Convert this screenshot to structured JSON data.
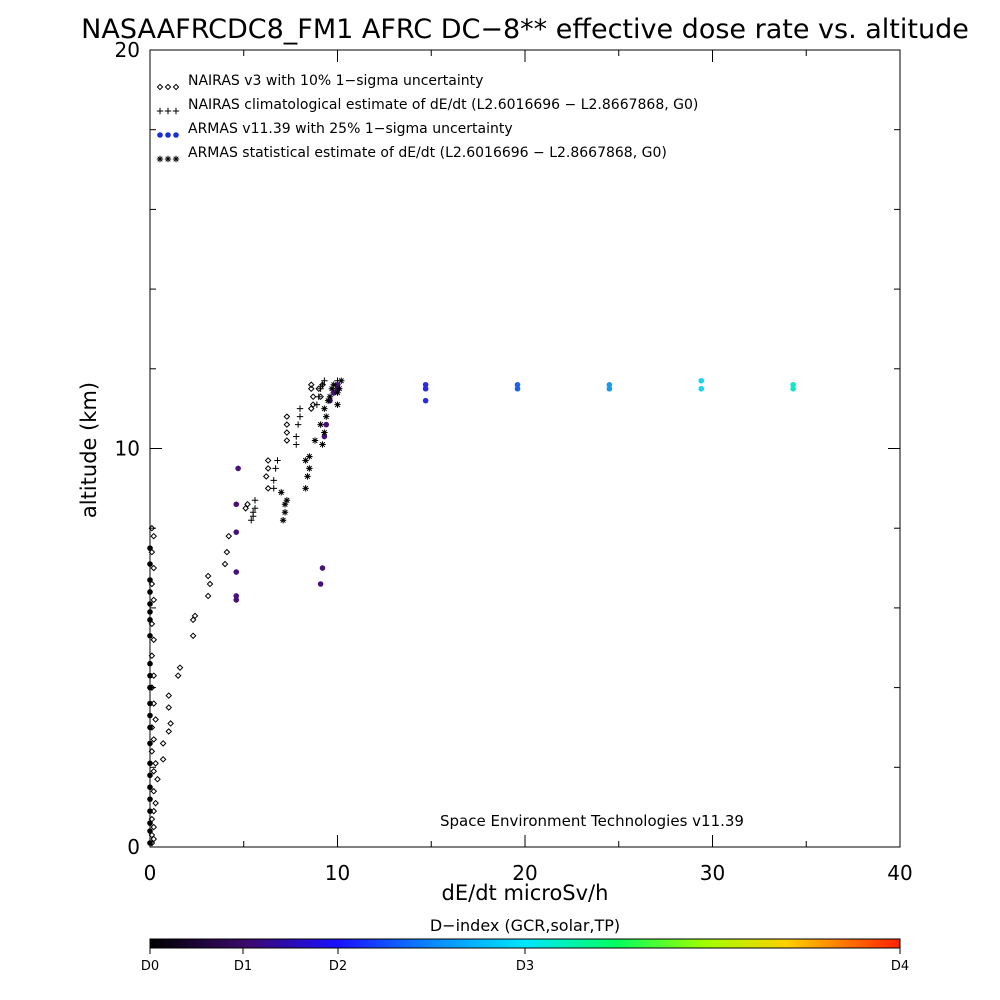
{
  "chart_data": {
    "type": "scatter",
    "title": "NASAAFRCDC8_FM1 AFRC DC−8** effective dose rate vs. altitude",
    "xlabel": "dE/dt microSv/h",
    "ylabel": "altitude (km)",
    "xlim": [
      0,
      40
    ],
    "ylim": [
      0,
      20
    ],
    "x_ticks": [
      0,
      10,
      20,
      30,
      40
    ],
    "y_ticks": [
      0,
      10,
      20
    ],
    "legend_position": "top-left",
    "annotation": "Space Environment Technologies v11.39",
    "series": [
      {
        "name": "NAIRAS v3 with 10% 1−sigma uncertainty",
        "marker": "diamond",
        "color": "#000000",
        "points": [
          [
            0.1,
            0.1
          ],
          [
            0.2,
            0.2
          ],
          [
            0.1,
            0.3
          ],
          [
            0.2,
            0.5
          ],
          [
            0.1,
            0.7
          ],
          [
            0.2,
            0.9
          ],
          [
            0.3,
            1.1
          ],
          [
            0.2,
            1.4
          ],
          [
            0.4,
            1.7
          ],
          [
            0.2,
            1.9
          ],
          [
            0.3,
            2.1
          ],
          [
            0.1,
            2.4
          ],
          [
            0.2,
            2.7
          ],
          [
            0.1,
            3.0
          ],
          [
            0.3,
            3.2
          ],
          [
            0.2,
            3.6
          ],
          [
            0.1,
            4.0
          ],
          [
            0.2,
            4.3
          ],
          [
            0.1,
            4.8
          ],
          [
            0.2,
            5.2
          ],
          [
            0.1,
            5.6
          ],
          [
            0.2,
            6.2
          ],
          [
            0.1,
            6.6
          ],
          [
            0.2,
            7.0
          ],
          [
            0.1,
            7.4
          ],
          [
            0.2,
            7.8
          ],
          [
            0.1,
            8.0
          ],
          [
            0.7,
            2.2
          ],
          [
            0.7,
            2.6
          ],
          [
            1.0,
            2.9
          ],
          [
            1.1,
            3.1
          ],
          [
            1.0,
            3.5
          ],
          [
            1.0,
            3.8
          ],
          [
            1.5,
            4.3
          ],
          [
            1.6,
            4.5
          ],
          [
            2.3,
            5.3
          ],
          [
            2.3,
            5.7
          ],
          [
            2.4,
            5.8
          ],
          [
            3.1,
            6.3
          ],
          [
            3.2,
            6.6
          ],
          [
            3.1,
            6.8
          ],
          [
            4.0,
            7.1
          ],
          [
            4.1,
            7.4
          ],
          [
            4.2,
            7.8
          ],
          [
            5.1,
            8.5
          ],
          [
            5.2,
            8.6
          ],
          [
            6.3,
            9.0
          ],
          [
            6.2,
            9.3
          ],
          [
            6.3,
            9.5
          ],
          [
            6.3,
            9.7
          ],
          [
            7.3,
            10.2
          ],
          [
            7.3,
            10.4
          ],
          [
            7.3,
            10.6
          ],
          [
            7.3,
            10.8
          ],
          [
            8.6,
            11.0
          ],
          [
            8.7,
            11.1
          ],
          [
            8.7,
            11.3
          ],
          [
            8.6,
            11.5
          ],
          [
            8.6,
            11.6
          ],
          [
            9.0,
            11.5
          ],
          [
            9.1,
            11.3
          ],
          [
            9.2,
            11.6
          ]
        ]
      },
      {
        "name": "NAIRAS climatological estimate of dE/dt (L2.6016696 − L2.8667868, G0)",
        "marker": "plus",
        "color": "#000000",
        "points": [
          [
            5.4,
            8.2
          ],
          [
            5.5,
            8.3
          ],
          [
            5.5,
            8.4
          ],
          [
            5.6,
            8.5
          ],
          [
            5.6,
            8.7
          ],
          [
            6.6,
            9.0
          ],
          [
            6.6,
            9.2
          ],
          [
            6.7,
            9.5
          ],
          [
            6.8,
            9.7
          ],
          [
            7.8,
            10.1
          ],
          [
            7.8,
            10.3
          ],
          [
            7.9,
            10.6
          ],
          [
            8.0,
            10.8
          ],
          [
            8.0,
            11.0
          ],
          [
            8.9,
            11.1
          ],
          [
            9.0,
            11.3
          ],
          [
            9.1,
            11.5
          ],
          [
            9.2,
            11.6
          ],
          [
            9.3,
            11.7
          ],
          [
            9.8,
            11.4
          ],
          [
            9.9,
            11.5
          ],
          [
            10.0,
            11.6
          ],
          [
            10.0,
            11.7
          ]
        ]
      },
      {
        "name": "ARMAS v11.39 with 25% 1−sigma uncertainty",
        "marker": "dot",
        "color": "#1a2fd6",
        "points": [
          [
            0,
            0.1
          ],
          [
            0,
            0.4
          ],
          [
            0,
            0.6
          ],
          [
            0,
            0.9
          ],
          [
            0,
            1.2
          ],
          [
            0,
            1.5
          ],
          [
            0,
            1.8
          ],
          [
            0,
            2.1
          ],
          [
            0,
            2.6
          ],
          [
            0,
            3.0
          ],
          [
            0,
            3.3
          ],
          [
            0,
            3.6
          ],
          [
            0,
            4.0
          ],
          [
            0,
            4.3
          ],
          [
            0,
            4.6
          ],
          [
            0,
            5.3
          ],
          [
            0,
            5.7
          ],
          [
            0,
            5.9
          ],
          [
            0,
            6.1
          ],
          [
            0,
            6.4
          ],
          [
            0,
            6.7
          ],
          [
            0,
            7.1
          ],
          [
            0,
            7.5
          ],
          [
            4.6,
            6.2
          ],
          [
            4.6,
            6.3
          ],
          [
            4.6,
            6.9
          ],
          [
            4.6,
            7.9
          ],
          [
            4.6,
            8.6
          ],
          [
            4.7,
            9.5
          ],
          [
            9.1,
            6.6
          ],
          [
            9.2,
            7.0
          ],
          [
            9.3,
            10.3
          ],
          [
            9.4,
            10.6
          ],
          [
            9.6,
            11.2
          ],
          [
            9.8,
            11.4
          ],
          [
            10.0,
            11.5
          ],
          [
            10.0,
            11.6
          ],
          [
            14.7,
            11.2
          ],
          [
            14.7,
            11.5
          ],
          [
            14.7,
            11.6
          ],
          [
            19.6,
            11.5
          ],
          [
            19.6,
            11.6
          ],
          [
            24.5,
            11.5
          ],
          [
            24.5,
            11.6
          ],
          [
            29.4,
            11.5
          ],
          [
            29.4,
            11.7
          ],
          [
            34.3,
            11.5
          ],
          [
            34.3,
            11.6
          ]
        ]
      },
      {
        "name": "ARMAS statistical estimate of dE/dt (L2.6016696 − L2.8667868, G0)",
        "marker": "asterisk",
        "color": "#000000",
        "points": [
          [
            7.1,
            8.2
          ],
          [
            7.2,
            8.4
          ],
          [
            7.2,
            8.6
          ],
          [
            7.3,
            8.7
          ],
          [
            7.0,
            8.9
          ],
          [
            8.3,
            9.0
          ],
          [
            8.4,
            9.3
          ],
          [
            8.5,
            9.5
          ],
          [
            8.3,
            9.7
          ],
          [
            8.5,
            9.8
          ],
          [
            8.8,
            10.2
          ],
          [
            9.2,
            10.1
          ],
          [
            9.3,
            10.4
          ],
          [
            9.1,
            10.6
          ],
          [
            9.4,
            10.8
          ],
          [
            9.3,
            11.0
          ],
          [
            9.5,
            11.2
          ],
          [
            9.6,
            11.3
          ],
          [
            9.7,
            11.5
          ],
          [
            9.8,
            11.6
          ],
          [
            10.0,
            11.4
          ],
          [
            10.1,
            11.5
          ],
          [
            10.2,
            11.7
          ],
          [
            10.0,
            11.1
          ]
        ]
      }
    ],
    "colorbar": {
      "title": "D−index (GCR,solar,TP)",
      "ticks": [
        {
          "label": "D0",
          "value": 0
        },
        {
          "label": "D1",
          "value": 1
        },
        {
          "label": "D2",
          "value": 2
        },
        {
          "label": "D3",
          "value": 3
        },
        {
          "label": "D4",
          "value": 4
        }
      ]
    }
  }
}
